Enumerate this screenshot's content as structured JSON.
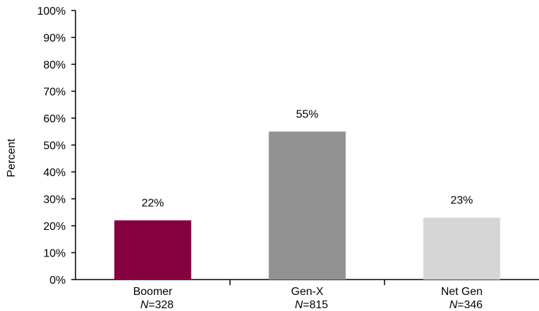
{
  "chart_data": {
    "type": "bar",
    "categories": [
      "Boomer",
      "Gen-X",
      "Net Gen"
    ],
    "n_labels": [
      "=328",
      "=815",
      "=346"
    ],
    "n_prefix": "N",
    "values": [
      22,
      55,
      23
    ],
    "data_labels": [
      "22%",
      "55%",
      "23%"
    ],
    "colors": [
      "#85003e",
      "#929292",
      "#d6d6d6"
    ],
    "ylabel": "Percent",
    "xlabel": "",
    "title": "",
    "ylim": [
      0,
      100
    ],
    "yticks": [
      "0%",
      "10%",
      "20%",
      "30%",
      "40%",
      "50%",
      "60%",
      "70%",
      "80%",
      "90%",
      "100%"
    ],
    "grid": false,
    "legend": "none"
  }
}
